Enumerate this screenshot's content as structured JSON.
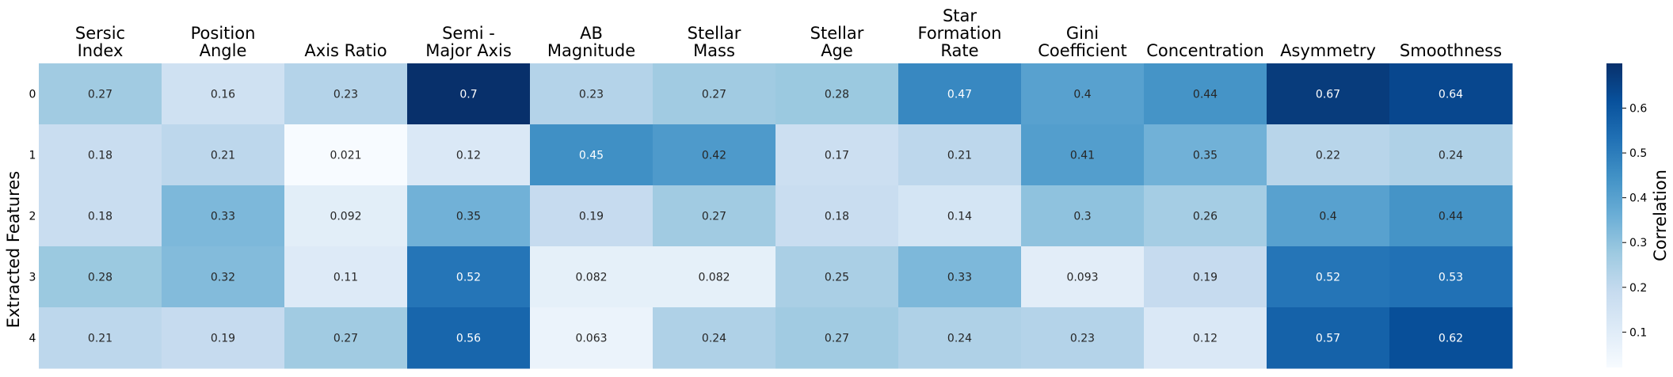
{
  "chart_data": {
    "type": "heatmap",
    "columns": [
      [
        "Sersic",
        "Index"
      ],
      [
        "Position",
        "Angle"
      ],
      [
        "Axis Ratio"
      ],
      [
        "Semi -",
        "Major Axis"
      ],
      [
        "AB",
        "Magnitude"
      ],
      [
        "Stellar",
        "Mass"
      ],
      [
        "Stellar",
        "Age"
      ],
      [
        "Star",
        "Formation",
        "Rate"
      ],
      [
        "Gini",
        "Coefficient"
      ],
      [
        "Concentration"
      ],
      [
        "Asymmetry"
      ],
      [
        "Smoothness"
      ]
    ],
    "rows": [
      "0",
      "1",
      "2",
      "3",
      "4"
    ],
    "values": [
      [
        0.27,
        0.16,
        0.23,
        0.7,
        0.23,
        0.27,
        0.28,
        0.47,
        0.4,
        0.44,
        0.67,
        0.64
      ],
      [
        0.18,
        0.21,
        0.021,
        0.12,
        0.45,
        0.42,
        0.17,
        0.21,
        0.41,
        0.35,
        0.22,
        0.24
      ],
      [
        0.18,
        0.33,
        0.092,
        0.35,
        0.19,
        0.27,
        0.18,
        0.14,
        0.3,
        0.26,
        0.4,
        0.44
      ],
      [
        0.28,
        0.32,
        0.11,
        0.52,
        0.082,
        0.082,
        0.25,
        0.33,
        0.093,
        0.19,
        0.52,
        0.53
      ],
      [
        0.21,
        0.19,
        0.27,
        0.56,
        0.063,
        0.24,
        0.27,
        0.24,
        0.23,
        0.12,
        0.57,
        0.62
      ]
    ],
    "ylabel": "Extracted Features",
    "colorbar": {
      "label": "Correlation",
      "range": [
        0.021,
        0.7
      ],
      "ticks": [
        "0.1",
        "0.2",
        "0.3",
        "0.4",
        "0.5",
        "0.6"
      ],
      "colormap": "Blues"
    },
    "colors": {
      "low": "#f7fbff",
      "high": "#08306b",
      "text_dark": "#262626",
      "text_light": "#ffffff"
    }
  }
}
